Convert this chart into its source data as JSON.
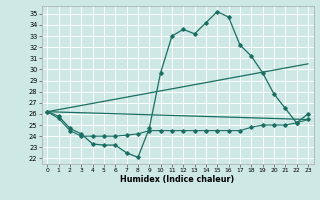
{
  "xlabel": "Humidex (Indice chaleur)",
  "xlim": [
    -0.5,
    23.5
  ],
  "ylim": [
    21.5,
    35.7
  ],
  "yticks": [
    22,
    23,
    24,
    25,
    26,
    27,
    28,
    29,
    30,
    31,
    32,
    33,
    34,
    35
  ],
  "xticks": [
    0,
    1,
    2,
    3,
    4,
    5,
    6,
    7,
    8,
    9,
    10,
    11,
    12,
    13,
    14,
    15,
    16,
    17,
    18,
    19,
    20,
    21,
    22,
    23
  ],
  "bg_color": "#cde8e5",
  "grid_color": "#ffffff",
  "line_color": "#1a6e62",
  "line1_x": [
    0,
    1,
    2,
    3,
    4,
    5,
    6,
    7,
    8,
    9,
    10,
    11,
    12,
    13,
    14,
    15,
    16,
    17,
    18,
    19,
    20,
    21,
    22,
    23
  ],
  "line1_y": [
    26.2,
    25.8,
    24.7,
    24.2,
    23.3,
    23.2,
    23.2,
    22.5,
    22.1,
    24.7,
    29.7,
    33.0,
    33.6,
    33.2,
    34.2,
    35.2,
    34.7,
    32.2,
    31.2,
    29.7,
    27.8,
    26.5,
    25.2,
    26.0
  ],
  "line2_x": [
    0,
    1,
    2,
    3,
    4,
    5,
    6,
    7,
    8,
    9,
    10,
    11,
    12,
    13,
    14,
    15,
    16,
    17,
    18,
    19,
    20,
    21,
    22,
    23
  ],
  "line2_y": [
    26.2,
    25.6,
    24.5,
    24.0,
    24.0,
    24.0,
    24.0,
    24.1,
    24.2,
    24.5,
    24.5,
    24.5,
    24.5,
    24.5,
    24.5,
    24.5,
    24.5,
    24.5,
    24.8,
    25.0,
    25.0,
    25.0,
    25.2,
    25.5
  ],
  "line3_x": [
    0,
    23
  ],
  "line3_y": [
    26.2,
    30.5
  ],
  "line4_x": [
    0,
    23
  ],
  "line4_y": [
    26.2,
    25.5
  ]
}
